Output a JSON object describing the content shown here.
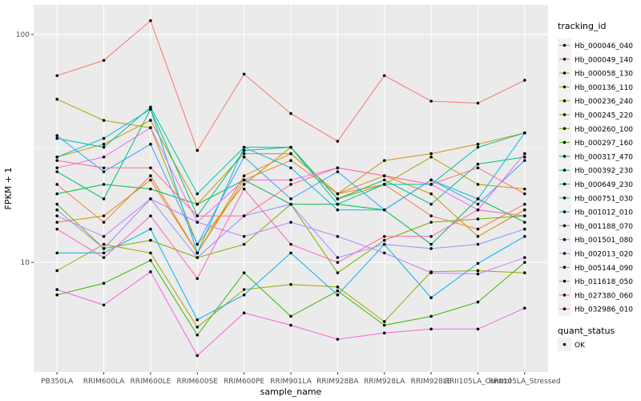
{
  "chart_data": {
    "type": "line",
    "xlabel": "sample_name",
    "ylabel": "FPKM + 1",
    "yscale": "log10",
    "ylim": [
      3.3,
      135
    ],
    "yticks": [
      10,
      100
    ],
    "ytick_labels": [
      "10",
      "100"
    ],
    "grid": true,
    "legend_position": "right",
    "categories": [
      "PB350LA",
      "RRIM600LA",
      "RRIM600LE",
      "RRIM600SE",
      "RRIM600PE",
      "RRIM901LA",
      "RRIM928BA",
      "RRIM928LA",
      "RRIM928LE",
      "RRII105LA_Control",
      "RRII105LA_Stressed"
    ],
    "legend_title": "tracking_id",
    "series": [
      {
        "name": "Hb_000046_040",
        "color": "#F8766D",
        "values": [
          66,
          77,
          115,
          31,
          67,
          45,
          34,
          66,
          51,
          50,
          63
        ]
      },
      {
        "name": "Hb_000049_140",
        "color": "#EE8044",
        "values": [
          22,
          15,
          24,
          11,
          23,
          28,
          20,
          22,
          16,
          14,
          18
        ]
      },
      {
        "name": "Hb_000058_130",
        "color": "#DE8C00",
        "values": [
          15,
          16,
          23,
          11,
          24,
          30,
          20,
          24,
          20,
          13,
          17
        ]
      },
      {
        "name": "Hb_000136_110",
        "color": "#CD9600",
        "values": [
          29,
          33,
          42,
          18,
          30,
          30,
          20,
          28,
          30,
          33,
          37
        ]
      },
      {
        "name": "Hb_000236_240",
        "color": "#B79F00",
        "values": [
          52,
          42,
          39,
          12,
          22,
          32,
          19,
          22,
          29,
          22,
          21
        ]
      },
      {
        "name": "Hb_000245_220",
        "color": "#A3A500",
        "values": [
          9.2,
          12,
          11,
          5.2,
          7.6,
          8,
          7.8,
          5.5,
          9.1,
          9.2,
          9
        ]
      },
      {
        "name": "Hb_000260_100",
        "color": "#7CAE00",
        "values": [
          18,
          11.5,
          12.5,
          10.5,
          12,
          18,
          9,
          12.5,
          15,
          15.5,
          16
        ]
      },
      {
        "name": "Hb_000297_160",
        "color": "#39B600",
        "values": [
          7.2,
          8.1,
          10.2,
          4.8,
          9,
          5.8,
          7.5,
          5.3,
          5.8,
          6.7,
          10
        ]
      },
      {
        "name": "Hb_000317_470",
        "color": "#00BB4E",
        "values": [
          20,
          22,
          21,
          18,
          23,
          18,
          18,
          17,
          12,
          19,
          15
        ]
      },
      {
        "name": "Hb_000392_230",
        "color": "#00BF7D",
        "values": [
          25,
          19,
          47,
          16,
          31,
          32,
          19,
          23,
          18,
          27,
          29
        ]
      },
      {
        "name": "Hb_000649_230",
        "color": "#00C1A3",
        "values": [
          35,
          32,
          48,
          20,
          32,
          32,
          18,
          22,
          22,
          32,
          37
        ]
      },
      {
        "name": "Hb_000751_030",
        "color": "#00BCD8",
        "values": [
          29,
          35,
          47,
          11,
          32,
          26,
          17,
          17,
          23,
          19,
          37
        ]
      },
      {
        "name": "Hb_001012_010",
        "color": "#00B0F6",
        "values": [
          11,
          11,
          14,
          5.6,
          7.2,
          11,
          7.2,
          12,
          7,
          9.9,
          13
        ]
      },
      {
        "name": "Hb_001188_070",
        "color": "#35A2FF",
        "values": [
          36,
          25,
          33,
          12,
          29,
          19,
          25,
          17,
          23,
          18,
          28
        ]
      },
      {
        "name": "Hb_001501_080",
        "color": "#9590FF",
        "values": [
          17,
          11.5,
          19,
          10.5,
          16,
          18,
          10.5,
          12,
          11.5,
          12,
          14
        ]
      },
      {
        "name": "Hb_002013_020",
        "color": "#C77CFF",
        "values": [
          16,
          13,
          19,
          15,
          13,
          15,
          13,
          11,
          9,
          8.9,
          10.5
        ]
      },
      {
        "name": "Hb_005144_090",
        "color": "#E76BF3",
        "values": [
          26,
          29,
          39,
          15,
          23,
          23,
          26,
          24,
          22,
          17,
          30
        ]
      },
      {
        "name": "Hb_011618_050",
        "color": "#F962DD",
        "values": [
          7.6,
          6.5,
          9.1,
          3.9,
          6,
          5.3,
          4.6,
          4.9,
          5.1,
          5.1,
          6.3
        ]
      },
      {
        "name": "Hb_027380_060",
        "color": "#FF62BC",
        "values": [
          14,
          10.5,
          16,
          8.5,
          21,
          12,
          10,
          13,
          13,
          17,
          16
        ]
      },
      {
        "name": "Hb_032986_010",
        "color": "#FF6C91",
        "values": [
          28,
          26,
          26,
          16,
          16,
          22,
          26,
          24,
          22,
          26,
          20
        ]
      }
    ],
    "shape_legend_title": "quant_status",
    "shape_legend_items": [
      "OK"
    ]
  }
}
